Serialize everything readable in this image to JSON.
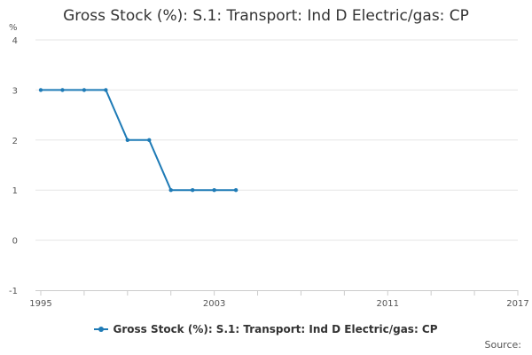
{
  "colors": {
    "series": "#1f7bb6",
    "grid": "#e6e6e6",
    "axis": "#cccccc"
  },
  "footer": {
    "source": "Source:"
  },
  "chart_data": {
    "type": "line",
    "title": "Gross Stock (%): S.1: Transport: Ind D Electric/gas: CP",
    "ylabel": "%",
    "xlabel": "",
    "xlim": [
      1995,
      2017
    ],
    "ylim": [
      -1,
      4
    ],
    "yticks": [
      -1,
      0,
      1,
      2,
      3,
      4
    ],
    "xticks": [
      1995,
      2003,
      2011,
      2017
    ],
    "grid": true,
    "legend": "bottom-center",
    "series": [
      {
        "name": "Gross Stock (%): S.1: Transport: Ind D Electric/gas: CP",
        "x": [
          1995,
          1996,
          1997,
          1998,
          1999,
          2000,
          2001,
          2002,
          2003,
          2004
        ],
        "values": [
          3,
          3,
          3,
          3,
          2,
          2,
          1,
          1,
          1,
          1
        ]
      }
    ]
  }
}
